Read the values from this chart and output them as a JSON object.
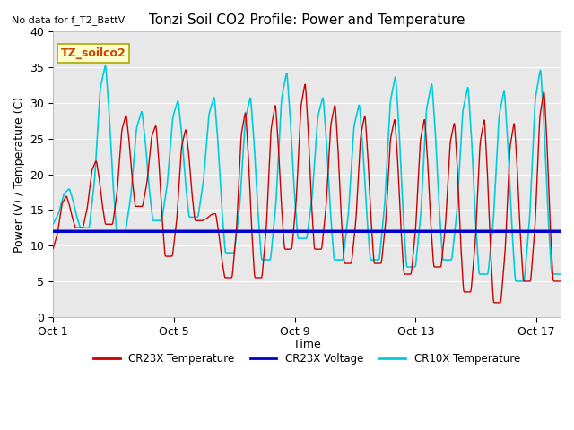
{
  "title": "Tonzi Soil CO2 Profile: Power and Temperature",
  "top_left_note": "No data for f_T2_BattV",
  "ylabel": "Power (V) / Temperature (C)",
  "xlabel": "Time",
  "ylim": [
    0,
    40
  ],
  "xlim": [
    0,
    16.8
  ],
  "xtick_positions": [
    0,
    4,
    8,
    12,
    16
  ],
  "xtick_labels": [
    "Oct 1",
    "Oct 5",
    "Oct 9",
    "Oct 13",
    "Oct 17"
  ],
  "ytick_positions": [
    0,
    5,
    10,
    15,
    20,
    25,
    30,
    35,
    40
  ],
  "bg_color": "#e8e8e8",
  "fig_bg_color": "#ffffff",
  "plot_label": "TZ_soilco2",
  "legend_entries": [
    "CR23X Temperature",
    "CR23X Voltage",
    "CR10X Temperature"
  ],
  "legend_colors": [
    "#cc0000",
    "#0000cc",
    "#00cccc"
  ],
  "voltage_value": 12.0,
  "cr23x_cycle_data": [
    {
      "trough_before": 9.5,
      "peak": 17.0,
      "trough_after": 12.5
    },
    {
      "trough_before": 12.5,
      "peak": 22.0,
      "trough_after": 13.0
    },
    {
      "trough_before": 13.0,
      "peak": 28.5,
      "trough_after": 15.5
    },
    {
      "trough_before": 15.5,
      "peak": 27.0,
      "trough_after": 8.5
    },
    {
      "trough_before": 8.5,
      "peak": 26.5,
      "trough_after": 13.5
    },
    {
      "trough_before": 13.5,
      "peak": 14.5,
      "trough_after": 5.5
    },
    {
      "trough_before": 5.5,
      "peak": 29.0,
      "trough_after": 5.5
    },
    {
      "trough_before": 5.5,
      "peak": 30.0,
      "trough_after": 9.5
    },
    {
      "trough_before": 9.5,
      "peak": 33.0,
      "trough_after": 9.5
    },
    {
      "trough_before": 9.5,
      "peak": 30.0,
      "trough_after": 7.5
    },
    {
      "trough_before": 7.5,
      "peak": 28.5,
      "trough_after": 7.5
    },
    {
      "trough_before": 7.5,
      "peak": 28.0,
      "trough_after": 6.0
    },
    {
      "trough_before": 6.0,
      "peak": 28.0,
      "trough_after": 7.0
    },
    {
      "trough_before": 7.0,
      "peak": 27.5,
      "trough_after": 3.5
    },
    {
      "trough_before": 3.5,
      "peak": 28.0,
      "trough_after": 2.0
    },
    {
      "trough_before": 2.0,
      "peak": 27.5,
      "trough_after": 5.0
    },
    {
      "trough_before": 5.0,
      "peak": 32.0,
      "trough_after": 5.0
    }
  ],
  "cr10x_cycle_data": [
    {
      "trough_before": 13.0,
      "peak": 18.0,
      "trough_after": 12.5
    },
    {
      "trough_before": 12.5,
      "peak": 35.5,
      "trough_after": 12.0
    },
    {
      "trough_before": 12.0,
      "peak": 29.0,
      "trough_after": 13.5
    },
    {
      "trough_before": 13.5,
      "peak": 30.5,
      "trough_after": 14.0
    },
    {
      "trough_before": 14.0,
      "peak": 31.0,
      "trough_after": 9.0
    },
    {
      "trough_before": 9.0,
      "peak": 31.0,
      "trough_after": 8.0
    },
    {
      "trough_before": 8.0,
      "peak": 34.5,
      "trough_after": 11.0
    },
    {
      "trough_before": 11.0,
      "peak": 31.0,
      "trough_after": 8.0
    },
    {
      "trough_before": 8.0,
      "peak": 30.0,
      "trough_after": 8.0
    },
    {
      "trough_before": 8.0,
      "peak": 34.0,
      "trough_after": 7.0
    },
    {
      "trough_before": 7.0,
      "peak": 33.0,
      "trough_after": 8.0
    },
    {
      "trough_before": 8.0,
      "peak": 32.5,
      "trough_after": 6.0
    },
    {
      "trough_before": 6.0,
      "peak": 32.0,
      "trough_after": 5.0
    },
    {
      "trough_before": 5.0,
      "peak": 35.0,
      "trough_after": 6.0
    }
  ]
}
